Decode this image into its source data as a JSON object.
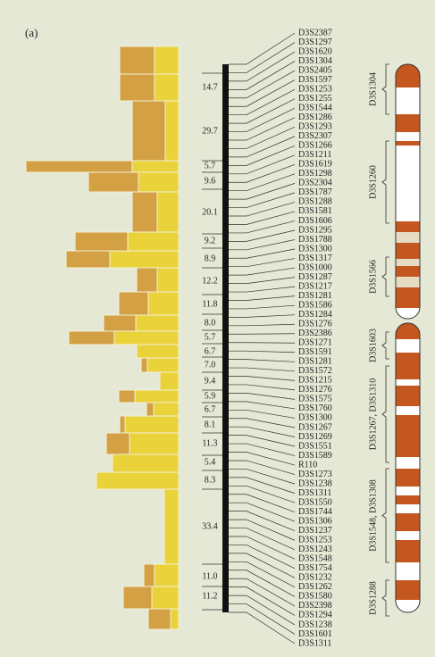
{
  "panel_label": "(a)",
  "intervals": [
    "14.7",
    "29.7",
    "5.7",
    "9.6",
    "20.1",
    "9.2",
    "8.9",
    "12.2",
    "11.8",
    "8.0",
    "5.7",
    "6.7",
    "7.0",
    "9.4",
    "5.9",
    "6.7",
    "8.1",
    "11.3",
    "5.4",
    "8.3",
    "33.4",
    "11.0",
    "11.2"
  ],
  "markers": [
    "D3S2387",
    "D3S1297",
    "D3S1620",
    "D3S1304",
    "D3S2405",
    "D3S1597",
    "D3S1253",
    "D3S1255",
    "D3S1544",
    "D3S1286",
    "D3S1293",
    "D3S2307",
    "D3S1266",
    "D3S1211",
    "D3S1619",
    "D3S1298",
    "D3S2304",
    "D3S1787",
    "D3S1288",
    "D3S1581",
    "D3S1606",
    "D3S1295",
    "D3S1788",
    "D3S1300",
    "D3S1317",
    "D3S1000",
    "D3S1287",
    "D3S1217",
    "D3S1281",
    "D3S1586",
    "D3S1284",
    "D3S1276",
    "D3S2386",
    "D3S1271",
    "D3S1591",
    "D3S1281",
    "D3S1572",
    "D3S1215",
    "D3S1276",
    "D3S1575",
    "D3S1760",
    "D3S1300",
    "D3S1267",
    "D3S1269",
    "D3S1551",
    "D3S1589",
    "R110",
    "D3S1273",
    "D3S1238",
    "D3S1311",
    "D3S1550",
    "D3S1744",
    "D3S1306",
    "D3S1237",
    "D3S1253",
    "D3S1243",
    "D3S1548",
    "D3S1754",
    "D3S1232",
    "D3S1262",
    "D3S1580",
    "D3S2398",
    "D3S1294",
    "D3S1238",
    "D3S1601",
    "D3S1311"
  ],
  "regions": [
    "D3S1304",
    "D3S1260",
    "D3S1566",
    "D3S1603",
    "D3S1267, D3S1310",
    "D3S1548, D3S1308",
    "D3S1288"
  ]
}
